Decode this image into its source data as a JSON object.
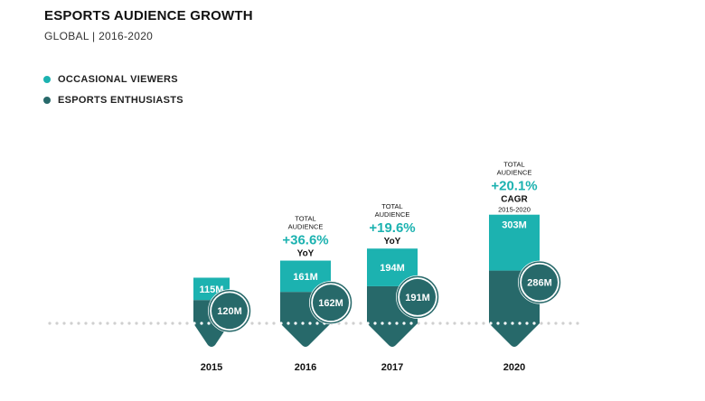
{
  "header": {
    "title": "ESPORTS AUDIENCE GROWTH",
    "subtitle": "GLOBAL | 2016-2020"
  },
  "colors": {
    "occasional": "#1cb2b0",
    "enthusiasts": "#27696a",
    "grid_dots": "#cfcfcf",
    "text": "#111111"
  },
  "chart_data": {
    "type": "bar",
    "stacked": true,
    "title": "ESPORTS AUDIENCE GROWTH",
    "subtitle": "GLOBAL | 2016-2020",
    "categories": [
      "2015",
      "2016",
      "2017",
      "2020"
    ],
    "series": [
      {
        "name": "ESPORTS ENTHUSIASTS",
        "values": [
          120,
          162,
          191,
          286
        ],
        "labels": [
          "120M",
          "162M",
          "191M",
          "286M"
        ],
        "color": "#27696a"
      },
      {
        "name": "OCCASIONAL VIEWERS",
        "values": [
          115,
          161,
          194,
          303
        ],
        "labels": [
          "115M",
          "161M",
          "194M",
          "303M"
        ],
        "color": "#1cb2b0"
      }
    ],
    "legend": [
      {
        "label": "OCCASIONAL VIEWERS",
        "color": "#1cb2b0"
      },
      {
        "label": "ESPORTS ENTHUSIASTS",
        "color": "#27696a"
      }
    ],
    "legend_position": "top-left",
    "annotations": [
      null,
      {
        "line1": "TOTAL",
        "line2": "AUDIENCE",
        "value": "+36.6%",
        "metric": "YoY",
        "period": ""
      },
      {
        "line1": "TOTAL",
        "line2": "AUDIENCE",
        "value": "+19.6%",
        "metric": "YoY",
        "period": ""
      },
      {
        "line1": "TOTAL",
        "line2": "AUDIENCE",
        "value": "+20.1%",
        "metric": "CAGR",
        "period": "2015-2020"
      }
    ],
    "unit": "M",
    "grid": false
  }
}
